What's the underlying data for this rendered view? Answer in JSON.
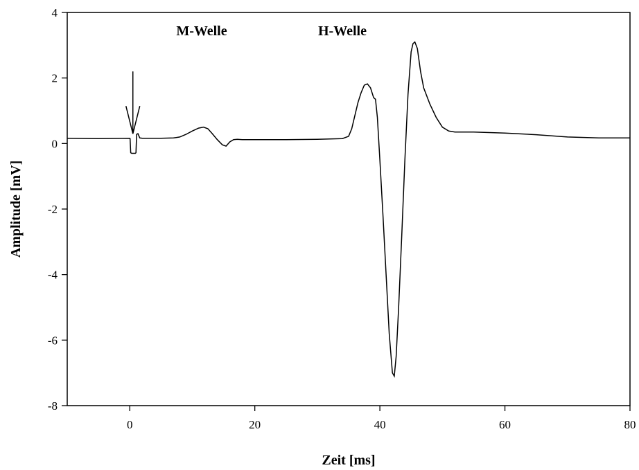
{
  "chart_data": {
    "type": "line",
    "xlabel": "Zeit [ms]",
    "ylabel": "Amplitude [mV]",
    "xlim": [
      -10,
      80
    ],
    "ylim": [
      -8,
      4
    ],
    "xticks": [
      0,
      20,
      40,
      60,
      80
    ],
    "yticks": [
      -8,
      -6,
      -4,
      -2,
      0,
      2,
      4
    ],
    "grid": false,
    "line_color": "#000000",
    "annotations": [
      {
        "text": "M-Welle",
        "x": 11.5,
        "y": 3.3
      },
      {
        "text": "H-Welle",
        "x": 34,
        "y": 3.3
      }
    ],
    "stimulus_arrow": {
      "x": 0.5,
      "y_from": 2.2,
      "y_to": 0.3
    },
    "series": [
      {
        "x": [
          -10,
          -5,
          0,
          0.05,
          0.15,
          0.3,
          0.9,
          1.0,
          1.1,
          1.3,
          1.6,
          2,
          3,
          5,
          7,
          8,
          9,
          10,
          11,
          11.8,
          12.5,
          13.2,
          14,
          14.8,
          15.4,
          16,
          16.6,
          17.2,
          18,
          20,
          25,
          30,
          32,
          34,
          35,
          35.5,
          36,
          36.5,
          37,
          37.5,
          38,
          38.5,
          39,
          39.3,
          39.6,
          40,
          40.5,
          41,
          41.5,
          42,
          42.3,
          42.6,
          43,
          43.5,
          44,
          44.5,
          45,
          45.3,
          45.6,
          46,
          46.5,
          47,
          48,
          49,
          50,
          51,
          52,
          55,
          60,
          65,
          70,
          75,
          80
        ],
        "y": [
          0.16,
          0.15,
          0.16,
          0.15,
          -0.28,
          -0.3,
          -0.3,
          -0.28,
          0.28,
          0.3,
          0.17,
          0.16,
          0.16,
          0.16,
          0.17,
          0.2,
          0.28,
          0.38,
          0.47,
          0.5,
          0.45,
          0.3,
          0.12,
          -0.04,
          -0.08,
          0.05,
          0.12,
          0.13,
          0.12,
          0.12,
          0.12,
          0.13,
          0.14,
          0.15,
          0.22,
          0.45,
          0.85,
          1.25,
          1.55,
          1.78,
          1.82,
          1.7,
          1.4,
          1.35,
          0.8,
          -0.5,
          -2.2,
          -4.0,
          -5.8,
          -7.0,
          -7.1,
          -6.5,
          -5.0,
          -2.8,
          -0.5,
          1.5,
          2.8,
          3.05,
          3.1,
          2.9,
          2.2,
          1.7,
          1.2,
          0.8,
          0.5,
          0.38,
          0.35,
          0.35,
          0.32,
          0.27,
          0.2,
          0.17,
          0.17
        ]
      }
    ]
  }
}
